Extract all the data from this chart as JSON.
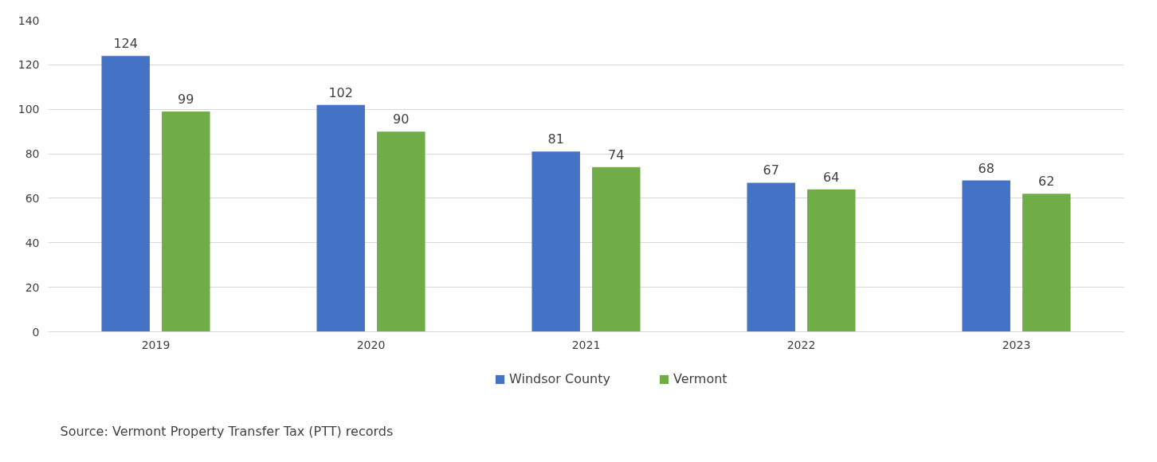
{
  "chart_data": {
    "type": "bar",
    "categories": [
      "2019",
      "2020",
      "2021",
      "2022",
      "2023"
    ],
    "series": [
      {
        "name": "Windsor County",
        "color": "#4472c4",
        "values": [
          124,
          102,
          81,
          67,
          68
        ]
      },
      {
        "name": "Vermont",
        "color": "#70ad47",
        "values": [
          99,
          90,
          74,
          64,
          62
        ]
      }
    ],
    "ylim": [
      0,
      140
    ],
    "yticks": [
      0,
      20,
      40,
      60,
      80,
      100,
      120,
      140
    ],
    "grid": "y",
    "legend": "bottom",
    "data_labels": true,
    "annotations": [
      "Source: Vermont Property Transfer Tax (PTT) records"
    ]
  }
}
